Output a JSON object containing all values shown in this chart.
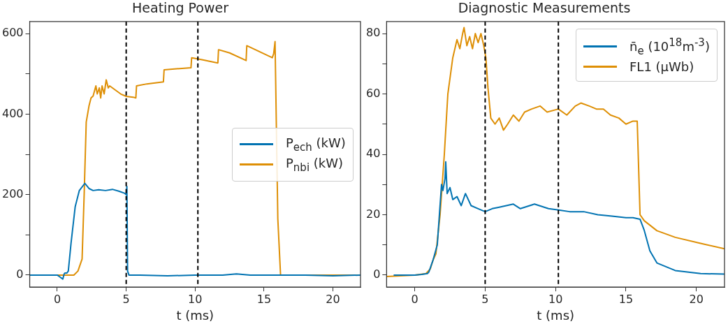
{
  "chart_data": [
    {
      "type": "line",
      "title": "Heating Power",
      "xlabel": "t (ms)",
      "xlim": [
        -2,
        22
      ],
      "xticks": [
        0,
        5,
        10,
        15,
        20
      ],
      "ylim": [
        -30,
        630
      ],
      "yticks": [
        0,
        {
          "value": 100,
          "label": null
        },
        200,
        {
          "value": 300,
          "label": null
        },
        400,
        {
          "value": 500,
          "label": null
        },
        600
      ],
      "grid": false,
      "legend": "center right",
      "marker": "none",
      "line_style": "solid",
      "ref_lines": [
        {
          "axis": "x",
          "value": 5,
          "color": "#000000",
          "line_style": "dashed"
        },
        {
          "axis": "x",
          "value": 10.2,
          "color": "#000000",
          "line_style": "dashed"
        }
      ],
      "series": [
        {
          "name": "P$_{ech}$ (kW)",
          "color": "#0173b2",
          "x": [
            -2,
            0,
            0.2,
            0.4,
            0.5,
            0.55,
            0.7,
            0.8,
            1.0,
            1.3,
            1.6,
            2.0,
            2.3,
            2.6,
            3.0,
            3.5,
            4.0,
            4.5,
            4.9,
            5.0,
            5.05,
            5.1,
            5.2,
            6,
            8,
            10,
            12,
            13,
            14,
            16,
            18,
            20,
            22
          ],
          "values": [
            0,
            0,
            -5,
            -10,
            3,
            5,
            5,
            10,
            80,
            170,
            210,
            228,
            215,
            210,
            212,
            210,
            213,
            208,
            203,
            200,
            220,
            10,
            0,
            0,
            -2,
            0,
            0,
            3,
            0,
            0,
            0,
            -2,
            0
          ]
        },
        {
          "name": "P$_{nbi}$ (kW)",
          "color": "#de8f05",
          "x": [
            -2,
            1.2,
            1.5,
            1.8,
            1.95,
            2.1,
            2.3,
            2.45,
            2.6,
            2.8,
            2.9,
            3.05,
            3.15,
            3.25,
            3.4,
            3.55,
            3.7,
            3.8,
            4.2,
            4.6,
            5.0,
            5.5,
            5.7,
            5.75,
            6.5,
            7.7,
            7.75,
            8.5,
            9.7,
            9.75,
            10.5,
            11.65,
            11.7,
            12.5,
            13.7,
            13.75,
            15.6,
            15.7,
            15.8,
            16.0,
            16.2,
            17,
            22
          ],
          "values": [
            0,
            0,
            10,
            40,
            200,
            380,
            420,
            440,
            445,
            470,
            450,
            465,
            440,
            470,
            450,
            485,
            465,
            470,
            460,
            450,
            444,
            442,
            440,
            470,
            475,
            480,
            510,
            512,
            515,
            540,
            535,
            527,
            560,
            552,
            533,
            570,
            540,
            550,
            580,
            140,
            0,
            0,
            0
          ]
        }
      ]
    },
    {
      "type": "line",
      "title": "Diagnostic Measurements",
      "xlabel": "t (ms)",
      "xlim": [
        -2,
        22
      ],
      "xticks": [
        0,
        5,
        10,
        15,
        20
      ],
      "ylim": [
        -4,
        84
      ],
      "yticks": [
        0,
        {
          "value": 10,
          "label": null
        },
        20,
        {
          "value": 30,
          "label": null
        },
        40,
        {
          "value": 50,
          "label": null
        },
        60,
        {
          "value": 70,
          "label": null
        },
        80
      ],
      "grid": false,
      "legend": "top right",
      "marker": "none",
      "line_style": "solid",
      "ref_lines": [
        {
          "axis": "x",
          "value": 5,
          "color": "#000000",
          "line_style": "dashed"
        },
        {
          "axis": "x",
          "value": 10.2,
          "color": "#000000",
          "line_style": "dashed"
        }
      ],
      "series": [
        {
          "name": "n̄$_{e}$ (10$^{18}$m$^{-3}$)",
          "color": "#0173b2",
          "x": [
            -1.5,
            0,
            0.5,
            0.9,
            1.0,
            1.3,
            1.6,
            1.9,
            2.0,
            2.15,
            2.2,
            2.3,
            2.5,
            2.7,
            3.0,
            3.3,
            3.6,
            4.0,
            4.5,
            5.0,
            5.5,
            6,
            7,
            7.5,
            8.5,
            9.5,
            10.3,
            11,
            12,
            13,
            14,
            15,
            15.5,
            16.0,
            16.3,
            16.7,
            17.2,
            18.5,
            20.3,
            22
          ],
          "values": [
            0,
            0,
            0.2,
            0.5,
            1,
            5,
            10,
            30,
            28,
            32,
            37.5,
            27,
            29,
            25,
            26,
            23,
            27,
            23,
            22,
            21,
            22,
            22.5,
            23.5,
            22,
            23.5,
            22,
            21.5,
            21,
            21,
            20,
            19.5,
            19,
            19,
            18.5,
            14.8,
            8,
            4,
            1.5,
            0.5,
            0.3
          ]
        },
        {
          "name": "FL1 (μWb)",
          "color": "#de8f05",
          "x": [
            -2,
            0,
            0.8,
            1.1,
            1.3,
            1.5,
            1.8,
            2.1,
            2.35,
            2.7,
            3.0,
            3.2,
            3.4,
            3.5,
            3.7,
            3.9,
            4.1,
            4.3,
            4.5,
            4.7,
            4.9,
            5.05,
            5.2,
            5.4,
            5.7,
            6.0,
            6.3,
            6.6,
            7.0,
            7.4,
            7.8,
            8.3,
            8.9,
            9.4,
            10.2,
            10.8,
            11.4,
            11.8,
            12.4,
            12.9,
            13.4,
            13.9,
            14.5,
            15.0,
            15.5,
            15.8,
            16.0,
            16.3,
            17.2,
            18.5,
            20.3,
            22
          ],
          "values": [
            -0.5,
            0,
            0.5,
            2,
            5,
            7,
            20,
            40,
            60,
            72,
            78,
            75,
            80,
            82,
            76,
            79,
            75,
            80,
            77,
            80,
            76,
            72,
            62,
            52,
            50,
            52,
            48,
            50,
            53,
            51,
            54,
            55,
            56,
            54,
            55,
            53,
            56,
            57,
            56,
            55,
            55,
            53,
            52,
            50,
            51,
            51,
            20,
            18,
            14.7,
            12.5,
            10.5,
            8.7
          ]
        }
      ]
    }
  ]
}
